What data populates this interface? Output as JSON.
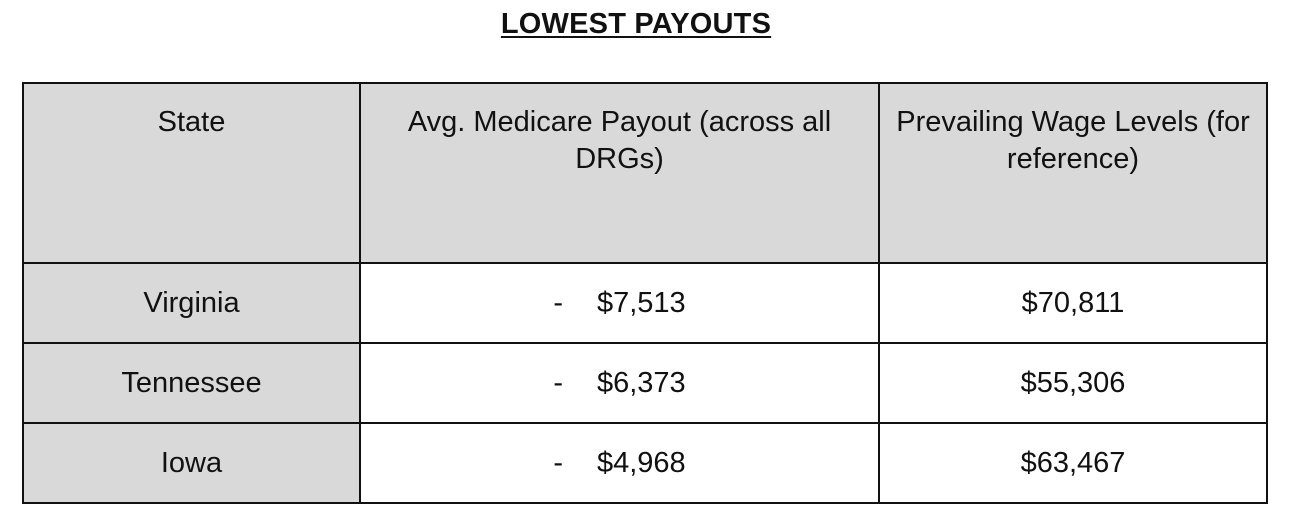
{
  "title": "LOWEST PAYOUTS",
  "table": {
    "headers": [
      "State",
      "Avg. Medicare Payout (across all DRGs)",
      "Prevailing Wage Levels (for reference)"
    ],
    "rows": [
      {
        "state": "Virginia",
        "dash": "-",
        "payout": "$7,513",
        "wage": "$70,811"
      },
      {
        "state": "Tennessee",
        "dash": "-",
        "payout": "$6,373",
        "wage": "$55,306"
      },
      {
        "state": "Iowa",
        "dash": "-",
        "payout": "$4,968",
        "wage": "$63,467"
      }
    ]
  },
  "colors": {
    "header_fill": "#d9d9d9",
    "border": "#111111"
  }
}
